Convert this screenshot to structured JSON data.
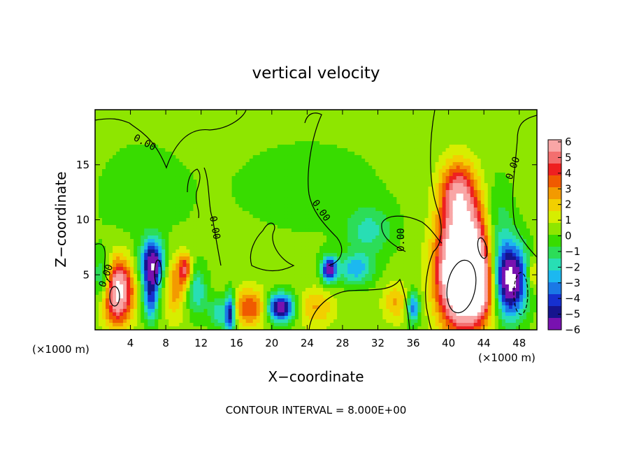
{
  "chart_data": {
    "type": "heatmap",
    "title": "vertical velocity",
    "xlabel": "X−coordinate",
    "ylabel": "Z−coordinate",
    "x_unit_left": "(×1000 m)",
    "x_unit_right": "(×1000 m)",
    "xlim": [
      0,
      50
    ],
    "ylim": [
      0,
      20
    ],
    "x_ticks": [
      4,
      8,
      12,
      16,
      20,
      24,
      28,
      32,
      36,
      40,
      44,
      48
    ],
    "y_ticks": [
      5,
      10,
      15
    ],
    "contour_note": "CONTOUR INTERVAL = 8.000E+00",
    "contour_labels": [
      "0.00",
      "0.00",
      "0.00",
      "0.00",
      "0.00",
      "0.00"
    ],
    "colorbar": {
      "tick_labels": [
        "6",
        "5",
        "4",
        "3",
        "2",
        "1",
        "0",
        "−1",
        "−2",
        "−3",
        "−4",
        "−5",
        "−6"
      ],
      "colors": [
        "#f9a6a6",
        "#f36f6f",
        "#ee2020",
        "#f05a00",
        "#f39a00",
        "#f2cf00",
        "#d6ee00",
        "#8ee600",
        "#38dc00",
        "#2cdd58",
        "#28deb4",
        "#1cb8f0",
        "#1a78e6",
        "#1630d0",
        "#16148e",
        "#7812b0"
      ],
      "range": [
        -6,
        6
      ]
    },
    "features": [
      {
        "x": 2.5,
        "z": 3.5,
        "value": 7.5,
        "sx": 1.2,
        "sz": 2.0
      },
      {
        "x": 1.0,
        "z": 4.5,
        "value": -3.5,
        "sx": 0.8,
        "sz": 1.6
      },
      {
        "x": 6.5,
        "z": 6.0,
        "value": -6.5,
        "sx": 0.9,
        "sz": 1.5
      },
      {
        "x": 6.3,
        "z": 2.8,
        "value": -4.0,
        "sx": 0.6,
        "sz": 1.5
      },
      {
        "x": 9.0,
        "z": 4.0,
        "value": 2.5,
        "sx": 0.9,
        "sz": 2.0
      },
      {
        "x": 10.2,
        "z": 5.5,
        "value": 4.0,
        "sx": 0.5,
        "sz": 1.0
      },
      {
        "x": 11.5,
        "z": 3.5,
        "value": -2.5,
        "sx": 0.8,
        "sz": 1.5
      },
      {
        "x": 14.0,
        "z": 1.5,
        "value": -2.5,
        "sx": 0.8,
        "sz": 1.0
      },
      {
        "x": 15.3,
        "z": 1.5,
        "value": -5.5,
        "sx": 0.4,
        "sz": 1.3
      },
      {
        "x": 17.5,
        "z": 2.0,
        "value": 3.5,
        "sx": 1.4,
        "sz": 1.2
      },
      {
        "x": 21.0,
        "z": 2.0,
        "value": -6.5,
        "sx": 1.1,
        "sz": 0.9
      },
      {
        "x": 25.0,
        "z": 2.0,
        "value": 2.0,
        "sx": 1.5,
        "sz": 1.2
      },
      {
        "x": 26.5,
        "z": 5.5,
        "value": -6.0,
        "sx": 0.6,
        "sz": 0.8
      },
      {
        "x": 29.5,
        "z": 5.5,
        "value": -3.0,
        "sx": 1.4,
        "sz": 1.0
      },
      {
        "x": 31.0,
        "z": 9.0,
        "value": -2.0,
        "sx": 1.8,
        "sz": 1.5
      },
      {
        "x": 34.0,
        "z": 2.5,
        "value": 2.0,
        "sx": 1.0,
        "sz": 1.2
      },
      {
        "x": 36.0,
        "z": 2.0,
        "value": -4.0,
        "sx": 0.5,
        "sz": 1.0
      },
      {
        "x": 41.0,
        "z": 12.5,
        "value": 4.5,
        "sx": 1.4,
        "sz": 2.0
      },
      {
        "x": 42.0,
        "z": 8.0,
        "value": 5.0,
        "sx": 2.0,
        "sz": 3.0
      },
      {
        "x": 41.5,
        "z": 4.5,
        "value": 10.0,
        "sx": 1.8,
        "sz": 3.0
      },
      {
        "x": 43.5,
        "z": 3.5,
        "value": 3.5,
        "sx": 1.2,
        "sz": 2.0
      },
      {
        "x": 45.5,
        "z": 9.0,
        "value": -2.0,
        "sx": 1.2,
        "sz": 3.0
      },
      {
        "x": 47.0,
        "z": 4.5,
        "value": -7.5,
        "sx": 1.3,
        "sz": 2.3
      },
      {
        "x": 49.5,
        "z": 5.0,
        "value": 2.0,
        "sx": 0.5,
        "sz": 1.0
      },
      {
        "x": 24.0,
        "z": 13.0,
        "value": -0.5,
        "sx": 8.0,
        "sz": 4.0
      },
      {
        "x": 5.0,
        "z": 12.0,
        "value": -0.6,
        "sx": 4.0,
        "sz": 4.0
      }
    ]
  }
}
